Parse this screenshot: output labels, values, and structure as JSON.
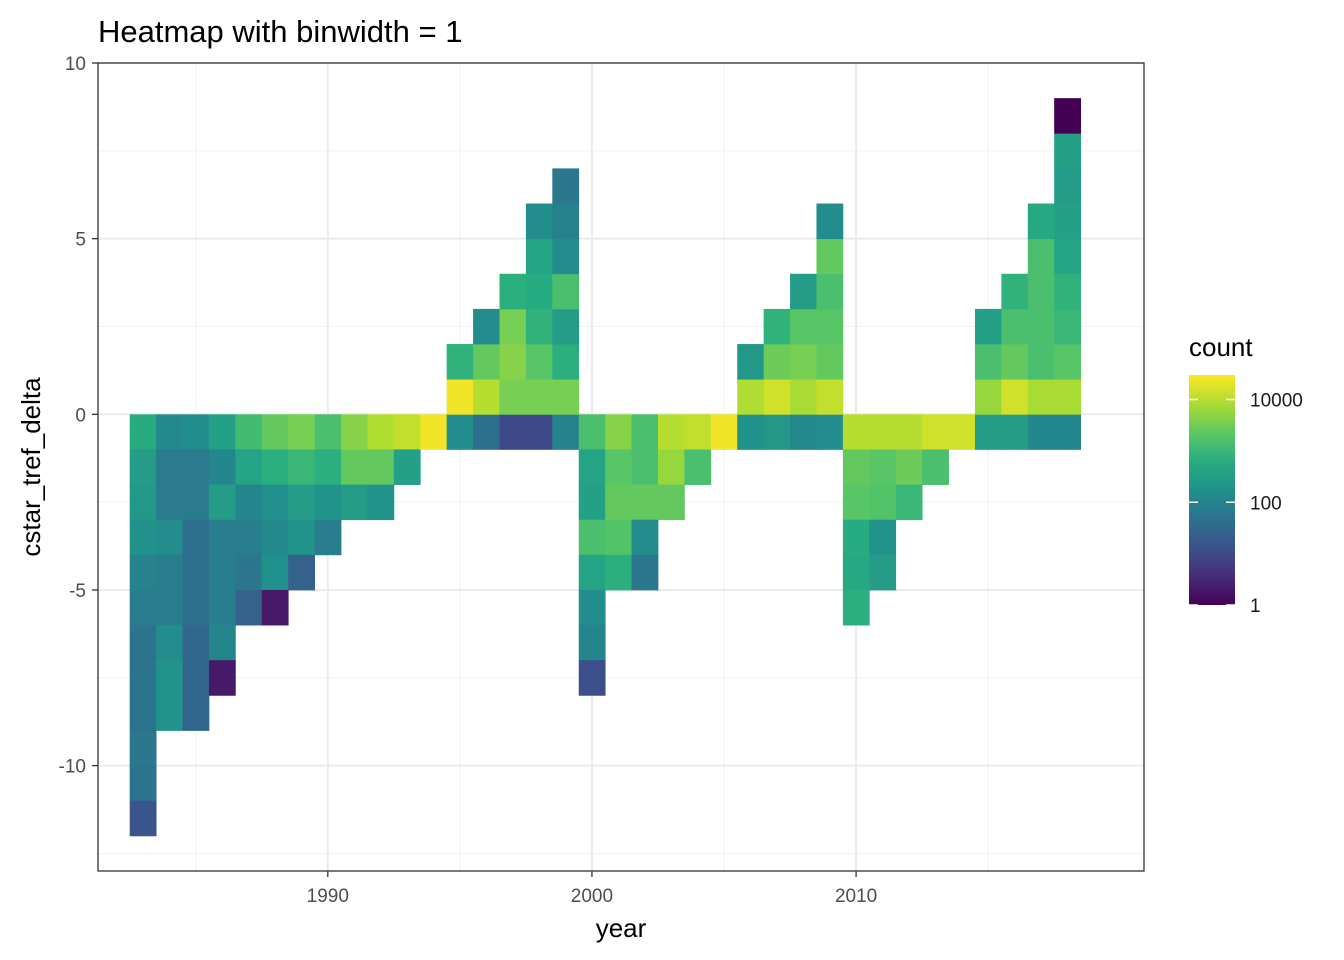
{
  "chart_data": {
    "type": "heatmap",
    "title": "Heatmap with binwidth = 1",
    "xlabel": "year",
    "ylabel": "cstar_tref_delta",
    "xlim": [
      1981.3,
      2020.9
    ],
    "ylim": [
      -13,
      10
    ],
    "x_ticks": [
      1990,
      2000,
      2010
    ],
    "x_tick_labels": [
      "1990",
      "2000",
      "2010"
    ],
    "y_ticks": [
      -10,
      -5,
      0,
      5,
      10
    ],
    "y_tick_labels": [
      "-10",
      "-5",
      "0",
      "5",
      "10"
    ],
    "binwidth": 1,
    "grid": true,
    "legend": {
      "title": "count",
      "position": "right",
      "scale": "log10",
      "range": [
        1,
        30000
      ],
      "breaks": [
        1,
        100,
        10000
      ],
      "break_labels": [
        "1",
        "100",
        "10000"
      ]
    },
    "colormap": [
      "#440154",
      "#472D7B",
      "#3B528B",
      "#2C728E",
      "#21908C",
      "#27AD81",
      "#5DC863",
      "#AADC32",
      "#FDE725"
    ],
    "cells_columns": [
      "year",
      "y_bottom",
      "count"
    ],
    "cells": [
      [
        1983,
        -1,
        600
      ],
      [
        1983,
        -2,
        300
      ],
      [
        1983,
        -3,
        250
      ],
      [
        1983,
        -4,
        180
      ],
      [
        1983,
        -5,
        100
      ],
      [
        1983,
        -6,
        70
      ],
      [
        1983,
        -7,
        50
      ],
      [
        1983,
        -8,
        50
      ],
      [
        1983,
        -9,
        50
      ],
      [
        1983,
        -10,
        60
      ],
      [
        1983,
        -11,
        50
      ],
      [
        1983,
        -12,
        15
      ],
      [
        1984,
        -1,
        130
      ],
      [
        1984,
        -2,
        70
      ],
      [
        1984,
        -3,
        70
      ],
      [
        1984,
        -4,
        150
      ],
      [
        1984,
        -5,
        80
      ],
      [
        1984,
        -6,
        80
      ],
      [
        1984,
        -7,
        150
      ],
      [
        1984,
        -8,
        200
      ],
      [
        1984,
        -9,
        200
      ],
      [
        1985,
        -1,
        160
      ],
      [
        1985,
        -2,
        70
      ],
      [
        1985,
        -3,
        70
      ],
      [
        1985,
        -4,
        40
      ],
      [
        1985,
        -5,
        40
      ],
      [
        1985,
        -6,
        40
      ],
      [
        1985,
        -7,
        30
      ],
      [
        1985,
        -8,
        30
      ],
      [
        1985,
        -9,
        30
      ],
      [
        1986,
        -1,
        350
      ],
      [
        1986,
        -2,
        120
      ],
      [
        1986,
        -3,
        300
      ],
      [
        1986,
        -4,
        80
      ],
      [
        1986,
        -5,
        80
      ],
      [
        1986,
        -6,
        80
      ],
      [
        1986,
        -7,
        110
      ],
      [
        1986,
        -8,
        2
      ],
      [
        1987,
        -1,
        1200
      ],
      [
        1987,
        -2,
        400
      ],
      [
        1987,
        -3,
        110
      ],
      [
        1987,
        -4,
        80
      ],
      [
        1987,
        -5,
        60
      ],
      [
        1987,
        -6,
        25
      ],
      [
        1988,
        -1,
        2500
      ],
      [
        1988,
        -2,
        700
      ],
      [
        1988,
        -3,
        170
      ],
      [
        1988,
        -4,
        130
      ],
      [
        1988,
        -5,
        180
      ],
      [
        1988,
        -6,
        2
      ],
      [
        1989,
        -1,
        3500
      ],
      [
        1989,
        -2,
        1000
      ],
      [
        1989,
        -3,
        300
      ],
      [
        1989,
        -4,
        200
      ],
      [
        1989,
        -5,
        25
      ],
      [
        1990,
        -1,
        1500
      ],
      [
        1990,
        -2,
        700
      ],
      [
        1990,
        -3,
        200
      ],
      [
        1990,
        -4,
        80
      ],
      [
        1991,
        -1,
        4500
      ],
      [
        1991,
        -2,
        2500
      ],
      [
        1991,
        -3,
        300
      ],
      [
        1992,
        -1,
        9000
      ],
      [
        1992,
        -2,
        2500
      ],
      [
        1992,
        -3,
        200
      ],
      [
        1993,
        -1,
        12000
      ],
      [
        1993,
        -2,
        350
      ],
      [
        1994,
        -1,
        25000
      ],
      [
        1995,
        -1,
        150
      ],
      [
        1995,
        0,
        25000
      ],
      [
        1995,
        1,
        800
      ],
      [
        1996,
        -1,
        40
      ],
      [
        1996,
        0,
        10000
      ],
      [
        1996,
        1,
        2500
      ],
      [
        1996,
        2,
        150
      ],
      [
        1997,
        -1,
        10
      ],
      [
        1997,
        0,
        3500
      ],
      [
        1997,
        1,
        4500
      ],
      [
        1997,
        2,
        3500
      ],
      [
        1997,
        3,
        700
      ],
      [
        1998,
        -1,
        10
      ],
      [
        1998,
        0,
        3500
      ],
      [
        1998,
        1,
        2000
      ],
      [
        1998,
        2,
        800
      ],
      [
        1998,
        3,
        600
      ],
      [
        1998,
        4,
        400
      ],
      [
        1998,
        5,
        150
      ],
      [
        1999,
        -1,
        100
      ],
      [
        1999,
        0,
        3500
      ],
      [
        1999,
        1,
        700
      ],
      [
        1999,
        2,
        300
      ],
      [
        1999,
        3,
        1500
      ],
      [
        1999,
        4,
        150
      ],
      [
        1999,
        5,
        90
      ],
      [
        1999,
        6,
        60
      ],
      [
        2000,
        -1,
        1500
      ],
      [
        2000,
        -2,
        400
      ],
      [
        2000,
        -3,
        350
      ],
      [
        2000,
        -4,
        1500
      ],
      [
        2000,
        -5,
        400
      ],
      [
        2000,
        -6,
        150
      ],
      [
        2000,
        -7,
        110
      ],
      [
        2000,
        -8,
        12
      ],
      [
        2001,
        -1,
        4500
      ],
      [
        2001,
        -2,
        2000
      ],
      [
        2001,
        -3,
        2500
      ],
      [
        2001,
        -4,
        1800
      ],
      [
        2001,
        -5,
        700
      ],
      [
        2002,
        -1,
        1500
      ],
      [
        2002,
        -2,
        1500
      ],
      [
        2002,
        -3,
        2500
      ],
      [
        2002,
        -4,
        150
      ],
      [
        2002,
        -5,
        60
      ],
      [
        2003,
        -1,
        10000
      ],
      [
        2003,
        -2,
        6000
      ],
      [
        2003,
        -3,
        2500
      ],
      [
        2004,
        -1,
        12000
      ],
      [
        2004,
        -2,
        1500
      ],
      [
        2005,
        -1,
        25000
      ],
      [
        2006,
        -1,
        180
      ],
      [
        2006,
        0,
        9000
      ],
      [
        2006,
        1,
        250
      ],
      [
        2007,
        -1,
        250
      ],
      [
        2007,
        0,
        15000
      ],
      [
        2007,
        1,
        3000
      ],
      [
        2007,
        2,
        800
      ],
      [
        2008,
        -1,
        130
      ],
      [
        2008,
        0,
        8000
      ],
      [
        2008,
        1,
        3500
      ],
      [
        2008,
        2,
        2000
      ],
      [
        2008,
        3,
        300
      ],
      [
        2009,
        -1,
        150
      ],
      [
        2009,
        0,
        12000
      ],
      [
        2009,
        1,
        2500
      ],
      [
        2009,
        2,
        2000
      ],
      [
        2009,
        3,
        1500
      ],
      [
        2009,
        4,
        2500
      ],
      [
        2009,
        5,
        150
      ],
      [
        2010,
        -1,
        10000
      ],
      [
        2010,
        -2,
        2500
      ],
      [
        2010,
        -3,
        2000
      ],
      [
        2010,
        -4,
        600
      ],
      [
        2010,
        -5,
        500
      ],
      [
        2010,
        -6,
        700
      ],
      [
        2011,
        -1,
        10000
      ],
      [
        2011,
        -2,
        2000
      ],
      [
        2011,
        -3,
        1800
      ],
      [
        2011,
        -4,
        200
      ],
      [
        2011,
        -5,
        300
      ],
      [
        2012,
        -1,
        10000
      ],
      [
        2012,
        -2,
        3000
      ],
      [
        2012,
        -3,
        1000
      ],
      [
        2013,
        -1,
        15000
      ],
      [
        2013,
        -2,
        1500
      ],
      [
        2014,
        -1,
        15000
      ],
      [
        2015,
        -1,
        300
      ],
      [
        2015,
        0,
        6000
      ],
      [
        2015,
        1,
        1500
      ],
      [
        2015,
        2,
        350
      ],
      [
        2016,
        -1,
        300
      ],
      [
        2016,
        0,
        15000
      ],
      [
        2016,
        1,
        2500
      ],
      [
        2016,
        2,
        1500
      ],
      [
        2016,
        3,
        800
      ],
      [
        2017,
        -1,
        120
      ],
      [
        2017,
        0,
        8000
      ],
      [
        2017,
        1,
        1500
      ],
      [
        2017,
        2,
        1500
      ],
      [
        2017,
        3,
        1500
      ],
      [
        2017,
        4,
        1500
      ],
      [
        2017,
        5,
        500
      ],
      [
        2018,
        -1,
        120
      ],
      [
        2018,
        0,
        8000
      ],
      [
        2018,
        1,
        2000
      ],
      [
        2018,
        2,
        1000
      ],
      [
        2018,
        3,
        800
      ],
      [
        2018,
        4,
        450
      ],
      [
        2018,
        5,
        350
      ],
      [
        2018,
        6,
        280
      ],
      [
        2018,
        7,
        350
      ],
      [
        2018,
        8,
        1
      ]
    ]
  }
}
